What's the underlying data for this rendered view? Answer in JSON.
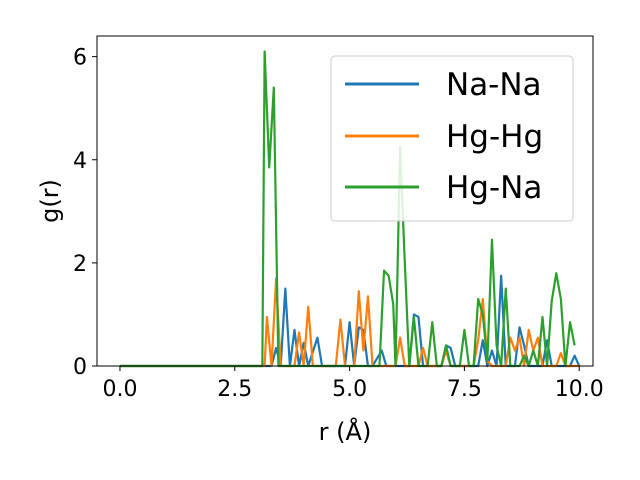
{
  "chart_data": {
    "type": "line",
    "title": "",
    "xlabel": "r (Å)",
    "ylabel": "g(r)",
    "xlim": [
      -0.5,
      10.3
    ],
    "ylim": [
      0,
      6.4
    ],
    "xticks": [
      0,
      2.5,
      5,
      7.5,
      10
    ],
    "xtick_labels": [
      "0.0",
      "2.5",
      "5.0",
      "7.5",
      "10.0"
    ],
    "yticks": [
      0,
      2,
      4,
      6
    ],
    "ytick_labels": [
      "0",
      "2",
      "4",
      "6"
    ],
    "grid": false,
    "legend_position": "top-right",
    "series": [
      {
        "name": "Na-Na",
        "color": "#1f77b4",
        "points": [
          [
            0,
            0
          ],
          [
            3.3,
            0
          ],
          [
            3.4,
            0.35
          ],
          [
            3.5,
            0
          ],
          [
            3.6,
            1.5
          ],
          [
            3.7,
            0
          ],
          [
            3.8,
            0.7
          ],
          [
            3.9,
            0
          ],
          [
            4.0,
            0.45
          ],
          [
            4.1,
            0
          ],
          [
            4.3,
            0.55
          ],
          [
            4.4,
            0
          ],
          [
            4.9,
            0
          ],
          [
            5.0,
            0.85
          ],
          [
            5.1,
            0
          ],
          [
            5.2,
            0.75
          ],
          [
            5.3,
            0.7
          ],
          [
            5.4,
            0
          ],
          [
            5.5,
            0
          ],
          [
            5.7,
            0.3
          ],
          [
            5.8,
            0
          ],
          [
            6.3,
            0
          ],
          [
            6.4,
            1.0
          ],
          [
            6.5,
            0.95
          ],
          [
            6.6,
            0
          ],
          [
            7.0,
            0
          ],
          [
            7.1,
            0.4
          ],
          [
            7.2,
            0.35
          ],
          [
            7.3,
            0
          ],
          [
            7.8,
            0
          ],
          [
            7.9,
            0.5
          ],
          [
            8.0,
            0
          ],
          [
            8.1,
            0.3
          ],
          [
            8.2,
            0
          ],
          [
            8.3,
            1.75
          ],
          [
            8.4,
            0
          ],
          [
            8.6,
            0
          ],
          [
            8.7,
            0.75
          ],
          [
            8.8,
            0.4
          ],
          [
            8.9,
            0
          ],
          [
            9.2,
            0
          ],
          [
            9.3,
            0.5
          ],
          [
            9.4,
            0
          ],
          [
            9.8,
            0
          ],
          [
            9.9,
            0.2
          ],
          [
            10.0,
            0
          ]
        ]
      },
      {
        "name": "Hg-Hg",
        "color": "#ff7f0e",
        "points": [
          [
            0,
            0
          ],
          [
            3.0,
            0
          ],
          [
            3.15,
            0
          ],
          [
            3.2,
            0.95
          ],
          [
            3.3,
            0
          ],
          [
            3.4,
            1.7
          ],
          [
            3.5,
            0
          ],
          [
            3.8,
            0
          ],
          [
            3.9,
            0.65
          ],
          [
            4.0,
            0
          ],
          [
            4.1,
            1.15
          ],
          [
            4.2,
            0
          ],
          [
            4.7,
            0
          ],
          [
            4.8,
            0.9
          ],
          [
            4.9,
            0
          ],
          [
            5.1,
            0
          ],
          [
            5.2,
            1.45
          ],
          [
            5.3,
            0.3
          ],
          [
            5.4,
            1.35
          ],
          [
            5.5,
            0
          ],
          [
            6.0,
            0
          ],
          [
            6.1,
            0.55
          ],
          [
            6.2,
            0
          ],
          [
            6.5,
            0
          ],
          [
            6.6,
            0.35
          ],
          [
            6.7,
            0
          ],
          [
            7.0,
            0
          ],
          [
            7.1,
            0.3
          ],
          [
            7.2,
            0
          ],
          [
            7.7,
            0
          ],
          [
            7.8,
            0.5
          ],
          [
            7.9,
            1.3
          ],
          [
            8.0,
            0.1
          ],
          [
            8.1,
            0
          ],
          [
            8.4,
            0
          ],
          [
            8.5,
            0.55
          ],
          [
            8.6,
            0.3
          ],
          [
            8.7,
            0.55
          ],
          [
            8.8,
            0
          ],
          [
            8.9,
            0.7
          ],
          [
            9.0,
            0.3
          ],
          [
            9.1,
            0.55
          ],
          [
            9.2,
            0
          ],
          [
            9.5,
            0
          ],
          [
            9.6,
            0.25
          ],
          [
            9.7,
            0
          ],
          [
            10.0,
            0
          ]
        ]
      },
      {
        "name": "Hg-Na",
        "color": "#2ca02c",
        "points": [
          [
            0,
            0
          ],
          [
            3.0,
            0
          ],
          [
            3.1,
            0
          ],
          [
            3.15,
            6.1
          ],
          [
            3.25,
            3.85
          ],
          [
            3.35,
            5.4
          ],
          [
            3.45,
            0
          ],
          [
            5.55,
            0
          ],
          [
            5.65,
            0
          ],
          [
            5.75,
            1.85
          ],
          [
            5.85,
            1.75
          ],
          [
            5.95,
            1.2
          ],
          [
            6.0,
            0
          ],
          [
            6.1,
            4.25
          ],
          [
            6.2,
            2.05
          ],
          [
            6.3,
            0
          ],
          [
            6.4,
            0.95
          ],
          [
            6.5,
            0
          ],
          [
            6.7,
            0
          ],
          [
            6.8,
            0.85
          ],
          [
            6.9,
            0
          ],
          [
            7.0,
            0
          ],
          [
            7.1,
            0.4
          ],
          [
            7.2,
            0
          ],
          [
            7.4,
            0
          ],
          [
            7.5,
            0.7
          ],
          [
            7.6,
            0
          ],
          [
            7.7,
            0
          ],
          [
            7.8,
            1.3
          ],
          [
            7.9,
            1.0
          ],
          [
            8.0,
            0.1
          ],
          [
            8.1,
            2.45
          ],
          [
            8.2,
            0.4
          ],
          [
            8.3,
            0
          ],
          [
            8.4,
            1.5
          ],
          [
            8.5,
            0
          ],
          [
            8.7,
            0
          ],
          [
            8.8,
            0.2
          ],
          [
            8.9,
            0
          ],
          [
            9.0,
            0.3
          ],
          [
            9.1,
            0
          ],
          [
            9.2,
            0.95
          ],
          [
            9.3,
            0
          ],
          [
            9.4,
            1.25
          ],
          [
            9.5,
            1.8
          ],
          [
            9.6,
            1.3
          ],
          [
            9.7,
            0
          ],
          [
            9.8,
            0.85
          ],
          [
            9.9,
            0.4
          ]
        ]
      }
    ]
  }
}
